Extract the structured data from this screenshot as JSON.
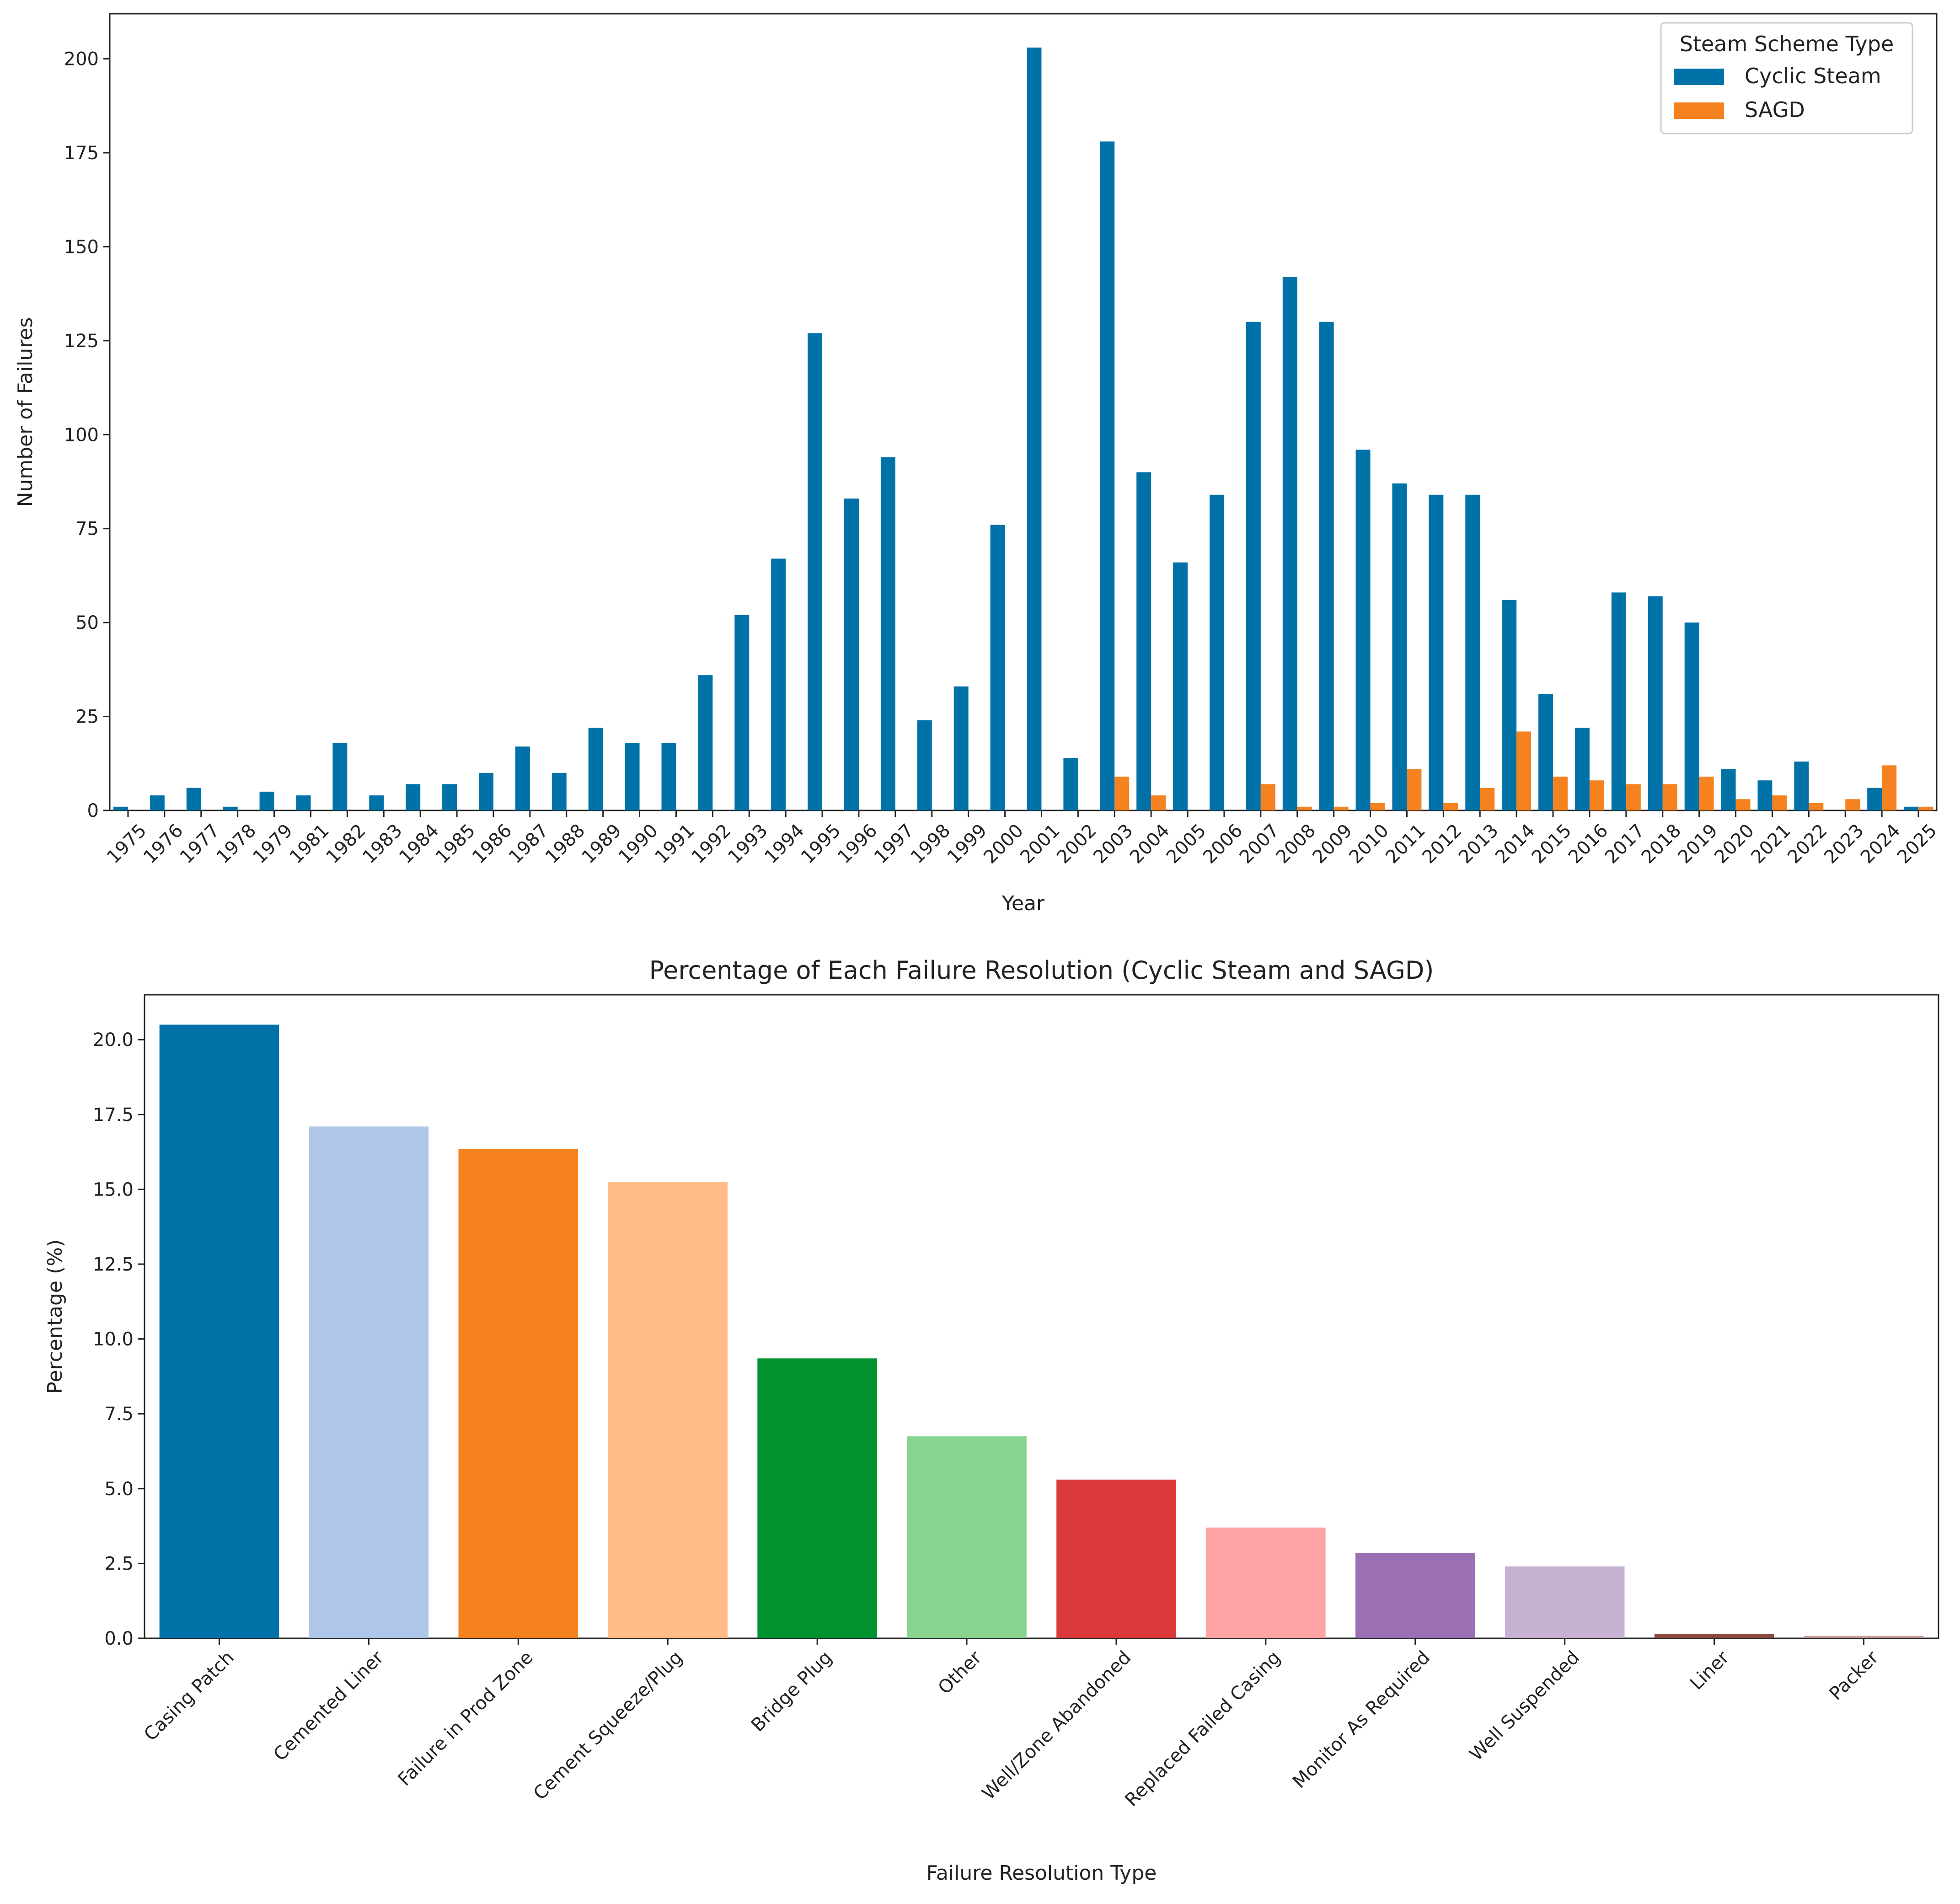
{
  "chart_data": [
    {
      "type": "bar",
      "title": "",
      "xlabel": "Year",
      "ylabel": "Number of Failures",
      "ylim": [
        0,
        212
      ],
      "yticks": [
        0,
        25,
        50,
        75,
        100,
        125,
        150,
        175,
        200
      ],
      "grid": false,
      "legend": {
        "title": "Steam Scheme Type",
        "placement": "top-right"
      },
      "categories": [
        "1975",
        "1976",
        "1977",
        "1978",
        "1979",
        "1981",
        "1982",
        "1983",
        "1984",
        "1985",
        "1986",
        "1987",
        "1988",
        "1989",
        "1990",
        "1991",
        "1992",
        "1993",
        "1994",
        "1995",
        "1996",
        "1997",
        "1998",
        "1999",
        "2000",
        "2001",
        "2002",
        "2003",
        "2004",
        "2005",
        "2006",
        "2007",
        "2008",
        "2009",
        "2010",
        "2011",
        "2012",
        "2013",
        "2014",
        "2015",
        "2016",
        "2017",
        "2018",
        "2019",
        "2020",
        "2021",
        "2022",
        "2023",
        "2024",
        "2025"
      ],
      "series": [
        {
          "name": "Cyclic Steam",
          "color": "#0072a8",
          "values": [
            1,
            4,
            6,
            1,
            5,
            4,
            18,
            4,
            7,
            7,
            10,
            17,
            10,
            22,
            18,
            18,
            36,
            52,
            67,
            127,
            83,
            94,
            24,
            33,
            76,
            203,
            14,
            178,
            90,
            66,
            84,
            130,
            142,
            130,
            96,
            87,
            84,
            84,
            56,
            31,
            22,
            58,
            57,
            50,
            11,
            8,
            13,
            0,
            6,
            1
          ]
        },
        {
          "name": "SAGD",
          "color": "#f5821f",
          "values": [
            0,
            0,
            0,
            0,
            0,
            0,
            0,
            0,
            0,
            0,
            0,
            0,
            0,
            0,
            0,
            0,
            0,
            0,
            0,
            0,
            0,
            0,
            0,
            0,
            0,
            0,
            0,
            9,
            4,
            0,
            0,
            7,
            1,
            1,
            2,
            11,
            2,
            6,
            21,
            9,
            8,
            7,
            7,
            9,
            3,
            4,
            2,
            3,
            12,
            1
          ]
        }
      ]
    },
    {
      "type": "bar",
      "title": "Percentage of Each Failure Resolution (Cyclic Steam and SAGD)",
      "xlabel": "Failure Resolution Type",
      "ylabel": "Percentage (%)",
      "ylim": [
        0,
        21.5
      ],
      "yticks": [
        "0.0",
        "2.5",
        "5.0",
        "7.5",
        "10.0",
        "12.5",
        "15.0",
        "17.5",
        "20.0"
      ],
      "grid": false,
      "categories": [
        "Casing Patch",
        "Cemented Liner",
        "Failure in Prod Zone",
        "Cement Squeeze/Plug",
        "Bridge Plug",
        "Other",
        "Well/Zone Abandoned",
        "Replaced Failed Casing",
        "Monitor As Required",
        "Well Suspended",
        "Liner",
        "Packer"
      ],
      "values": [
        20.5,
        17.1,
        16.35,
        15.25,
        9.35,
        6.75,
        5.3,
        3.7,
        2.85,
        2.4,
        0.15,
        0.08
      ],
      "colors": [
        "#0072a8",
        "#aec7e8",
        "#f5821f",
        "#ffbb88",
        "#00922f",
        "#86d48d",
        "#dc393b",
        "#ffa4a4",
        "#9a6fb4",
        "#c6b1d3",
        "#8c4a3c",
        "#c89c94"
      ]
    }
  ]
}
